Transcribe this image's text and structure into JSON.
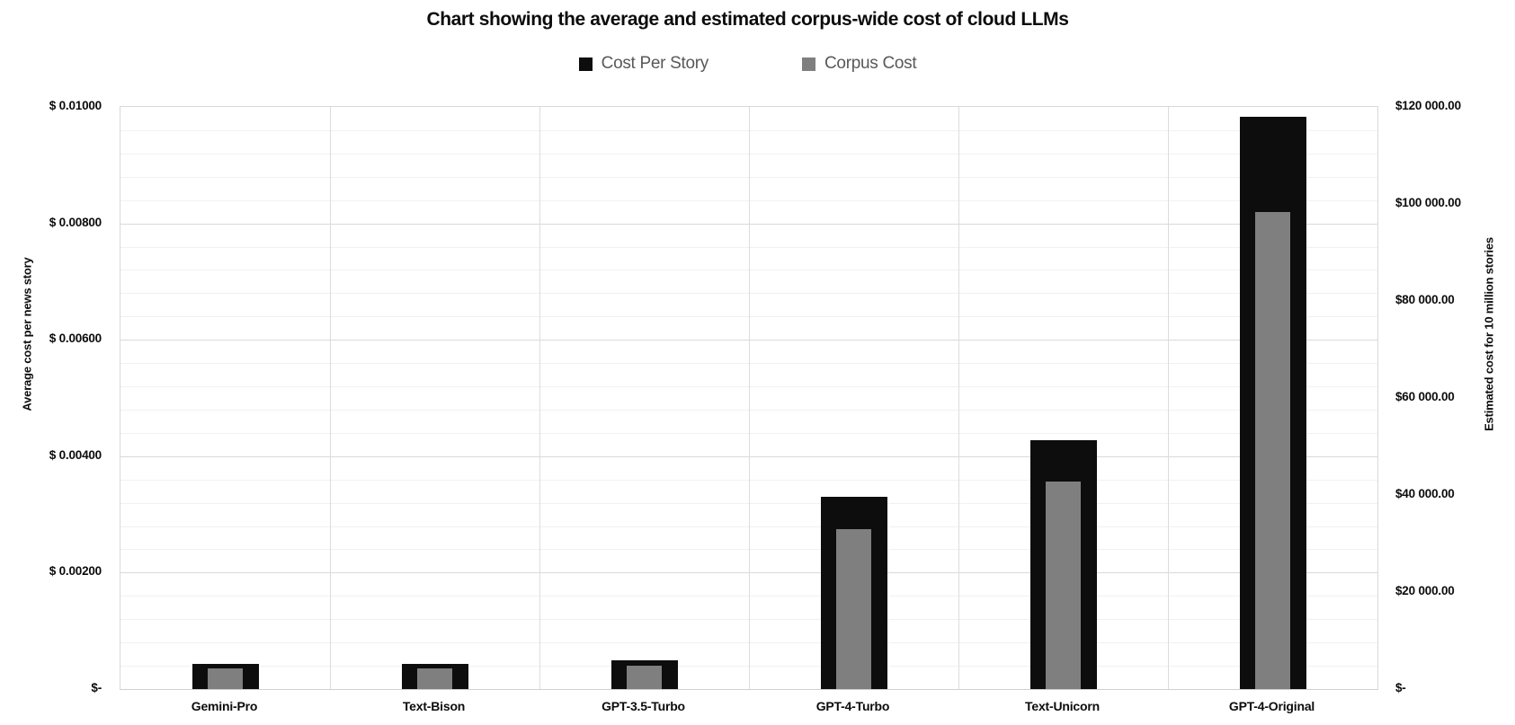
{
  "chart_data": {
    "type": "bar",
    "title": "Chart showing the average and estimated corpus-wide cost of cloud LLMs",
    "categories": [
      "Gemini-Pro",
      "Text-Bison",
      "GPT-3.5-Turbo",
      "GPT-4-Turbo",
      "Text-Unicorn",
      "GPT-4-Original"
    ],
    "series": [
      {
        "name": "Cost Per Story",
        "axis": "left",
        "color": "#0d0d0d",
        "values": [
          0.00043,
          0.00043,
          0.00049,
          0.0033,
          0.00427,
          0.00983
        ]
      },
      {
        "name": "Corpus Cost",
        "axis": "right",
        "color": "#7f7f7f",
        "values": [
          4300,
          4300,
          4900,
          33000,
          42700,
          98300
        ]
      }
    ],
    "left_axis": {
      "title": "Average cost per news story",
      "min": 0,
      "max": 0.01,
      "major_step": 0.002,
      "minor_step": 0.0004,
      "tick_labels": [
        "$ 0.01000",
        "$ 0.00800",
        "$ 0.00600",
        "$ 0.00400",
        "$ 0.00200",
        "$-"
      ]
    },
    "right_axis": {
      "title": "Estimated cost for 10 million stories",
      "min": 0,
      "max": 120000,
      "major_step": 20000,
      "tick_labels": [
        "$120 000.00",
        "$100 000.00",
        "$80 000.00",
        "$60 000.00",
        "$40 000.00",
        "$20 000.00",
        "$-"
      ]
    },
    "legend_position": "top",
    "grid": true
  },
  "colors": {
    "major_grid": "#d9d9d9",
    "minor_grid": "#f1f1f1",
    "category_line": "#dcdcdc",
    "axis_line": "#cfcfcf",
    "legend_text": "#595959",
    "text": "#0c0c0c",
    "background": "#ffffff"
  }
}
